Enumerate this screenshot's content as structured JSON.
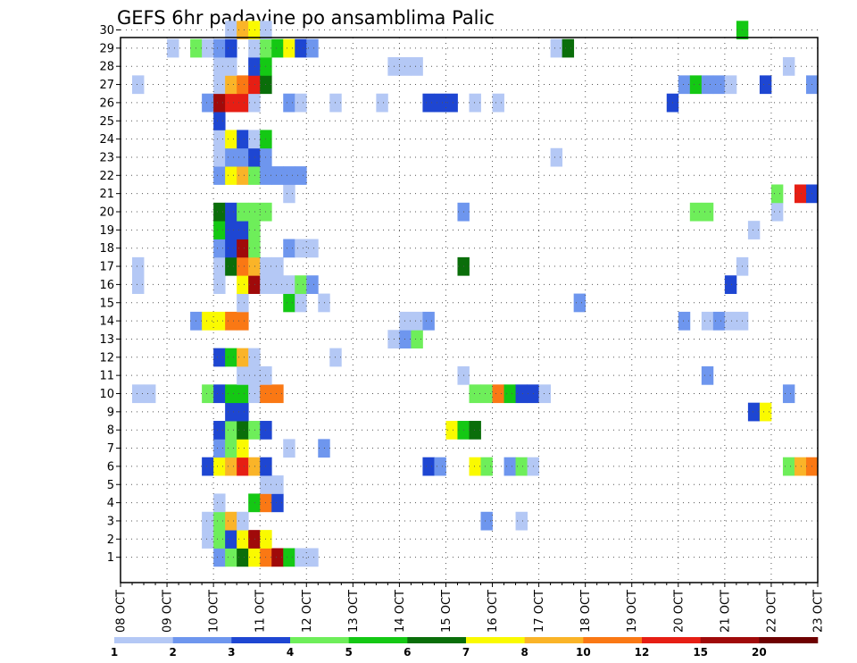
{
  "chart_data": {
    "type": "heatmap",
    "title": "GEFS 6hr padavine po ansamblima Palic",
    "xlabel": "",
    "ylabel": "",
    "x_ticks": [
      "08 OCT",
      "09 OCT",
      "10 OCT",
      "11 OCT",
      "12 OCT",
      "13 OCT",
      "14 OCT",
      "15 OCT",
      "16 OCT",
      "17 OCT",
      "18 OCT",
      "19 OCT",
      "20 OCT",
      "21 OCT",
      "22 OCT",
      "23 OCT"
    ],
    "y_ticks": [
      "1",
      "2",
      "3",
      "4",
      "5",
      "6",
      "7",
      "8",
      "9",
      "10",
      "11",
      "12",
      "13",
      "14",
      "15",
      "16",
      "17",
      "18",
      "19",
      "20",
      "21",
      "22",
      "23",
      "24",
      "25",
      "26",
      "27",
      "28",
      "29",
      "30"
    ],
    "x_steps_per_day": 4,
    "grid": true,
    "colorbar": {
      "labels": [
        "1",
        "2",
        "3",
        "4",
        "5",
        "6",
        "7",
        "8",
        "10",
        "12",
        "15",
        "20"
      ],
      "colors": [
        "#b4c8f5",
        "#6e96ee",
        "#1e46d2",
        "#6eee5a",
        "#14c814",
        "#0a6e0a",
        "#fafa00",
        "#fab428",
        "#fa7814",
        "#e61e14",
        "#a00a0a",
        "#6e0000"
      ]
    },
    "cells": [
      [
        0,
        8,
        2
      ],
      [
        0,
        9,
        4
      ],
      [
        0,
        10,
        6
      ],
      [
        0,
        11,
        7
      ],
      [
        0,
        12,
        9
      ],
      [
        0,
        13,
        11
      ],
      [
        0,
        14,
        5
      ],
      [
        0,
        15,
        1
      ],
      [
        0,
        16,
        1
      ],
      [
        1,
        7,
        1
      ],
      [
        1,
        8,
        4
      ],
      [
        1,
        9,
        3
      ],
      [
        1,
        10,
        7
      ],
      [
        1,
        11,
        11
      ],
      [
        1,
        12,
        7
      ],
      [
        2,
        7,
        1
      ],
      [
        2,
        8,
        4
      ],
      [
        2,
        9,
        8
      ],
      [
        2,
        10,
        1
      ],
      [
        2,
        31,
        2
      ],
      [
        2,
        34,
        1
      ],
      [
        3,
        8,
        1
      ],
      [
        3,
        11,
        5
      ],
      [
        3,
        12,
        9
      ],
      [
        3,
        13,
        3
      ],
      [
        4,
        12,
        1
      ],
      [
        4,
        13,
        1
      ],
      [
        5,
        7,
        3
      ],
      [
        5,
        8,
        7
      ],
      [
        5,
        9,
        8
      ],
      [
        5,
        10,
        10
      ],
      [
        5,
        11,
        8
      ],
      [
        5,
        12,
        3
      ],
      [
        5,
        26,
        3
      ],
      [
        5,
        27,
        2
      ],
      [
        5,
        30,
        7
      ],
      [
        5,
        31,
        4
      ],
      [
        5,
        33,
        2
      ],
      [
        5,
        34,
        4
      ],
      [
        5,
        35,
        1
      ],
      [
        5,
        57,
        4
      ],
      [
        5,
        58,
        8
      ],
      [
        5,
        59,
        9
      ],
      [
        6,
        8,
        2
      ],
      [
        6,
        9,
        4
      ],
      [
        6,
        10,
        7
      ],
      [
        6,
        14,
        1
      ],
      [
        6,
        17,
        2
      ],
      [
        7,
        8,
        3
      ],
      [
        7,
        9,
        4
      ],
      [
        7,
        10,
        6
      ],
      [
        7,
        11,
        4
      ],
      [
        7,
        12,
        3
      ],
      [
        7,
        28,
        7
      ],
      [
        7,
        29,
        5
      ],
      [
        7,
        30,
        6
      ],
      [
        8,
        9,
        3
      ],
      [
        8,
        10,
        3
      ],
      [
        8,
        54,
        3
      ],
      [
        8,
        55,
        7
      ],
      [
        9,
        1,
        1
      ],
      [
        9,
        2,
        1
      ],
      [
        9,
        7,
        4
      ],
      [
        9,
        8,
        3
      ],
      [
        9,
        9,
        5
      ],
      [
        9,
        10,
        5
      ],
      [
        9,
        11,
        1
      ],
      [
        9,
        12,
        9
      ],
      [
        9,
        13,
        9
      ],
      [
        9,
        30,
        4
      ],
      [
        9,
        31,
        4
      ],
      [
        9,
        32,
        9
      ],
      [
        9,
        33,
        5
      ],
      [
        9,
        34,
        3
      ],
      [
        9,
        35,
        3
      ],
      [
        9,
        36,
        1
      ],
      [
        9,
        57,
        2
      ],
      [
        10,
        10,
        1
      ],
      [
        10,
        11,
        1
      ],
      [
        10,
        12,
        1
      ],
      [
        10,
        29,
        1
      ],
      [
        10,
        50,
        2
      ],
      [
        11,
        8,
        3
      ],
      [
        11,
        9,
        5
      ],
      [
        11,
        10,
        8
      ],
      [
        11,
        11,
        1
      ],
      [
        11,
        18,
        1
      ],
      [
        12,
        23,
        1
      ],
      [
        12,
        24,
        2
      ],
      [
        12,
        25,
        4
      ],
      [
        13,
        6,
        2
      ],
      [
        13,
        7,
        7
      ],
      [
        13,
        8,
        7
      ],
      [
        13,
        9,
        9
      ],
      [
        13,
        10,
        9
      ],
      [
        13,
        24,
        1
      ],
      [
        13,
        25,
        1
      ],
      [
        13,
        26,
        2
      ],
      [
        13,
        48,
        2
      ],
      [
        13,
        50,
        1
      ],
      [
        13,
        51,
        2
      ],
      [
        13,
        52,
        1
      ],
      [
        13,
        53,
        1
      ],
      [
        14,
        10,
        1
      ],
      [
        14,
        14,
        5
      ],
      [
        14,
        15,
        1
      ],
      [
        14,
        17,
        1
      ],
      [
        14,
        39,
        2
      ],
      [
        15,
        1,
        1
      ],
      [
        15,
        8,
        1
      ],
      [
        15,
        10,
        7
      ],
      [
        15,
        11,
        11
      ],
      [
        15,
        12,
        1
      ],
      [
        15,
        13,
        1
      ],
      [
        15,
        14,
        1
      ],
      [
        15,
        15,
        4
      ],
      [
        15,
        16,
        2
      ],
      [
        15,
        52,
        3
      ],
      [
        16,
        1,
        1
      ],
      [
        16,
        8,
        1
      ],
      [
        16,
        9,
        6
      ],
      [
        16,
        10,
        9
      ],
      [
        16,
        11,
        8
      ],
      [
        16,
        12,
        1
      ],
      [
        16,
        13,
        1
      ],
      [
        16,
        29,
        6
      ],
      [
        16,
        53,
        1
      ],
      [
        17,
        8,
        2
      ],
      [
        17,
        9,
        3
      ],
      [
        17,
        10,
        11
      ],
      [
        17,
        11,
        4
      ],
      [
        17,
        14,
        2
      ],
      [
        17,
        15,
        1
      ],
      [
        17,
        16,
        1
      ],
      [
        18,
        8,
        5
      ],
      [
        18,
        9,
        3
      ],
      [
        18,
        10,
        3
      ],
      [
        18,
        11,
        4
      ],
      [
        18,
        54,
        1
      ],
      [
        19,
        8,
        6
      ],
      [
        19,
        9,
        3
      ],
      [
        19,
        10,
        4
      ],
      [
        19,
        11,
        4
      ],
      [
        19,
        12,
        4
      ],
      [
        19,
        29,
        2
      ],
      [
        19,
        49,
        4
      ],
      [
        19,
        50,
        4
      ],
      [
        19,
        56,
        1
      ],
      [
        20,
        14,
        1
      ],
      [
        20,
        56,
        4
      ],
      [
        20,
        58,
        10
      ],
      [
        20,
        59,
        3
      ],
      [
        21,
        8,
        2
      ],
      [
        21,
        9,
        7
      ],
      [
        21,
        10,
        8
      ],
      [
        21,
        11,
        4
      ],
      [
        21,
        12,
        2
      ],
      [
        21,
        13,
        2
      ],
      [
        21,
        14,
        2
      ],
      [
        21,
        15,
        2
      ],
      [
        22,
        8,
        1
      ],
      [
        22,
        9,
        2
      ],
      [
        22,
        10,
        2
      ],
      [
        22,
        11,
        3
      ],
      [
        22,
        12,
        2
      ],
      [
        22,
        37,
        1
      ],
      [
        23,
        8,
        1
      ],
      [
        23,
        9,
        7
      ],
      [
        23,
        10,
        3
      ],
      [
        23,
        11,
        1
      ],
      [
        23,
        12,
        5
      ],
      [
        24,
        8,
        3
      ],
      [
        25,
        7,
        2
      ],
      [
        25,
        8,
        11
      ],
      [
        25,
        9,
        10
      ],
      [
        25,
        10,
        10
      ],
      [
        25,
        11,
        1
      ],
      [
        25,
        14,
        2
      ],
      [
        25,
        15,
        1
      ],
      [
        25,
        18,
        1
      ],
      [
        25,
        22,
        1
      ],
      [
        25,
        26,
        3
      ],
      [
        25,
        27,
        3
      ],
      [
        25,
        28,
        3
      ],
      [
        25,
        30,
        1
      ],
      [
        25,
        32,
        1
      ],
      [
        25,
        47,
        3
      ],
      [
        26,
        1,
        1
      ],
      [
        26,
        8,
        1
      ],
      [
        26,
        9,
        8
      ],
      [
        26,
        10,
        9
      ],
      [
        26,
        11,
        10
      ],
      [
        26,
        12,
        6
      ],
      [
        26,
        48,
        2
      ],
      [
        26,
        49,
        5
      ],
      [
        26,
        50,
        2
      ],
      [
        26,
        51,
        2
      ],
      [
        26,
        52,
        1
      ],
      [
        26,
        55,
        3
      ],
      [
        26,
        59,
        2
      ],
      [
        27,
        8,
        1
      ],
      [
        27,
        9,
        1
      ],
      [
        27,
        11,
        3
      ],
      [
        27,
        12,
        5
      ],
      [
        27,
        23,
        1
      ],
      [
        27,
        24,
        1
      ],
      [
        27,
        25,
        1
      ],
      [
        27,
        57,
        1
      ],
      [
        28,
        4,
        1
      ],
      [
        28,
        6,
        4
      ],
      [
        28,
        7,
        1
      ],
      [
        28,
        8,
        2
      ],
      [
        28,
        9,
        3
      ],
      [
        28,
        11,
        1
      ],
      [
        28,
        12,
        4
      ],
      [
        28,
        13,
        5
      ],
      [
        28,
        14,
        7
      ],
      [
        28,
        15,
        3
      ],
      [
        28,
        16,
        2
      ],
      [
        28,
        37,
        1
      ],
      [
        28,
        38,
        6
      ],
      [
        29,
        9,
        1
      ],
      [
        29,
        10,
        8
      ],
      [
        29,
        11,
        7
      ],
      [
        29,
        12,
        1
      ],
      [
        29,
        53,
        5
      ]
    ]
  }
}
